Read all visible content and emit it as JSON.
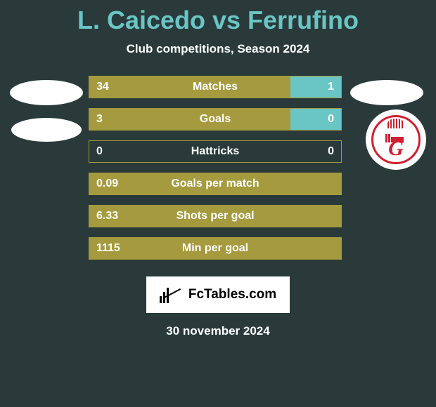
{
  "title": "L. Caicedo vs Ferrufino",
  "subtitle": "Club competitions, Season 2024",
  "colors": {
    "title": "#6ac5c5",
    "left_fill": "#a59a3e",
    "right_fill": "#6ac5c5",
    "background": "#2a3a3a",
    "club_primary": "#d02030"
  },
  "club_letter": "G",
  "stats": [
    {
      "label": "Matches",
      "left_val": "34",
      "right_val": "1",
      "left_pct": 80,
      "right_pct": 20
    },
    {
      "label": "Goals",
      "left_val": "3",
      "right_val": "0",
      "left_pct": 80,
      "right_pct": 20
    },
    {
      "label": "Hattricks",
      "left_val": "0",
      "right_val": "0",
      "left_pct": 0,
      "right_pct": 0
    },
    {
      "label": "Goals per match",
      "left_val": "0.09",
      "right_val": "",
      "left_pct": 100,
      "right_pct": 0
    },
    {
      "label": "Shots per goal",
      "left_val": "6.33",
      "right_val": "",
      "left_pct": 100,
      "right_pct": 0
    },
    {
      "label": "Min per goal",
      "left_val": "1115",
      "right_val": "",
      "left_pct": 100,
      "right_pct": 0
    }
  ],
  "footer": {
    "logo_text": "FcTables.com",
    "date": "30 november 2024"
  }
}
